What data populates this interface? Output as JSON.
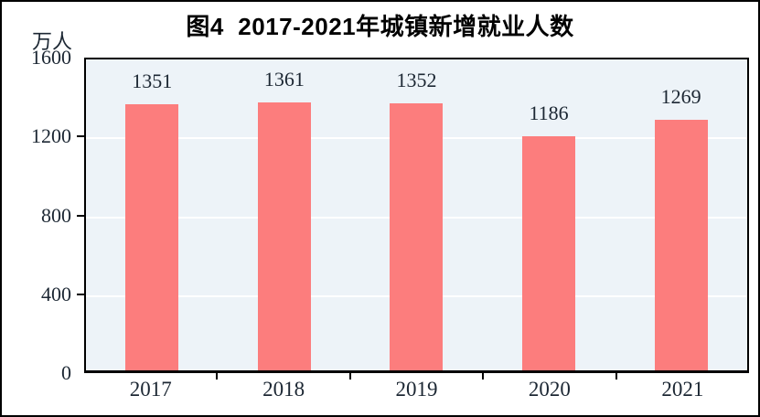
{
  "figure": {
    "title": "图4  2017-2021年城镇新增就业人数",
    "unit_label": "万人"
  },
  "chart_data": {
    "type": "bar",
    "title": "图4  2017-2021年城镇新增就业人数",
    "ylabel": "万人",
    "xlabel": "",
    "categories": [
      "2017",
      "2018",
      "2019",
      "2020",
      "2021"
    ],
    "values": [
      1351,
      1361,
      1352,
      1186,
      1269
    ],
    "value_labels_shown": true,
    "ylim": [
      0,
      1600
    ],
    "yticks": [
      0,
      400,
      800,
      1200,
      1600
    ],
    "grid": "horizontal",
    "legend": "none",
    "colors": {
      "bar": "#FC7D7D",
      "plot_background": "#EDF3F8",
      "gridline": "#FFFFFF",
      "axis_frame": "#000000",
      "tick_text": "#1C2733",
      "title_text": "#000000"
    }
  }
}
